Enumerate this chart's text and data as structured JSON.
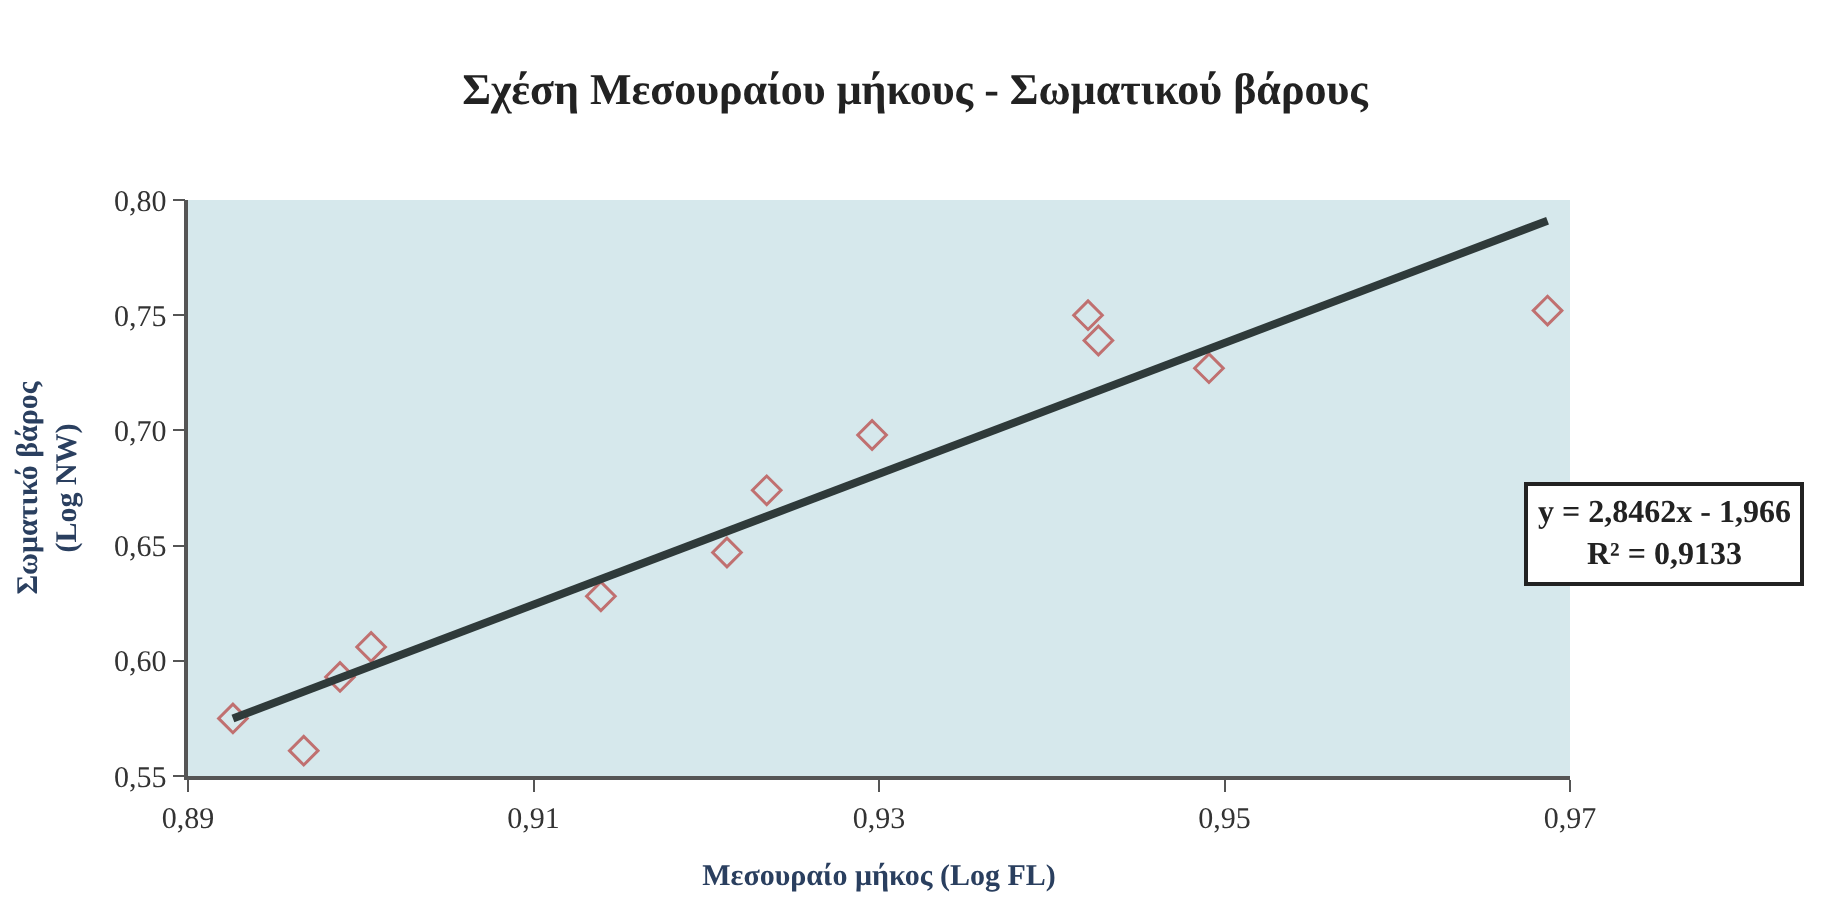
{
  "chart_data": {
    "type": "scatter",
    "title": "Σχέση Μεσουραίου μήκους - Σωματικού βάρους",
    "xlabel": "Μεσουραίο μήκος (Log FL)",
    "ylabel": "Σωματικό βάρος\n(Log NW)",
    "xlim": [
      0.89,
      0.97
    ],
    "xticks": [
      {
        "value": 0.89,
        "label": "0,89"
      },
      {
        "value": 0.91,
        "label": "0,91"
      },
      {
        "value": 0.93,
        "label": "0,93"
      },
      {
        "value": 0.95,
        "label": "0,95"
      },
      {
        "value": 0.97,
        "label": "0,97"
      }
    ],
    "ylim": [
      0.55,
      0.8
    ],
    "yticks": [
      {
        "value": 0.55,
        "label": "0,55"
      },
      {
        "value": 0.6,
        "label": "0,60"
      },
      {
        "value": 0.65,
        "label": "0,65"
      },
      {
        "value": 0.7,
        "label": "0,70"
      },
      {
        "value": 0.75,
        "label": "0,75"
      },
      {
        "value": 0.8,
        "label": "0,80"
      }
    ],
    "grid": false,
    "legend": false,
    "series": [
      {
        "marker": "diamond",
        "color": "#c07070",
        "x": [
          0.8926,
          0.8967,
          0.8988,
          0.9006,
          0.9139,
          0.9212,
          0.9235,
          0.9296,
          0.9421,
          0.9427,
          0.9491,
          0.9687
        ],
        "values": [
          0.575,
          0.561,
          0.593,
          0.606,
          0.628,
          0.647,
          0.674,
          0.698,
          0.75,
          0.739,
          0.727,
          0.752
        ]
      },
      {
        "type": "line",
        "color": "#2f3a3a",
        "x": [
          0.8926,
          0.9687
        ],
        "values": [
          0.575,
          0.791
        ]
      }
    ],
    "annotations": [
      "y = 2,8462x - 1,966\nR² = 0,9133"
    ]
  }
}
